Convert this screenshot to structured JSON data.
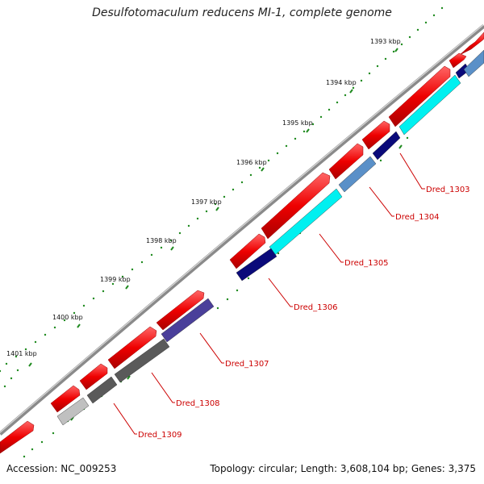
{
  "title": "Desulfotomaculum reducens MI-1, complete genome",
  "accession": "Accession: NC_009253",
  "stats": "Topology: circular; Length: 3,608,104 bp; Genes: 3,375",
  "colors": {
    "backbone": "#8a8a8a",
    "cds_forward": "#ee0000",
    "tick": "#1f8a1f",
    "label": "#cc0000"
  },
  "ticks": [
    "1393 kbp",
    "1394 kbp",
    "1395 kbp",
    "1396 kbp",
    "1397 kbp",
    "1398 kbp",
    "1399 kbp",
    "1400 kbp",
    "1401 kbp"
  ],
  "genes": [
    {
      "name": "Dred_1303",
      "color": "#0a0a7a"
    },
    {
      "name": "Dred_1304",
      "color": "#5a90c8"
    },
    {
      "name": "Dred_1305",
      "color": "#00f0f0"
    },
    {
      "name": "Dred_1306",
      "color": "#0a0a7a"
    },
    {
      "name": "Dred_1307",
      "color": "#4a3f9a"
    },
    {
      "name": "Dred_1308",
      "color": "#5a5a5a"
    },
    {
      "name": "Dred_1309",
      "color": "#c0c0c0"
    }
  ]
}
